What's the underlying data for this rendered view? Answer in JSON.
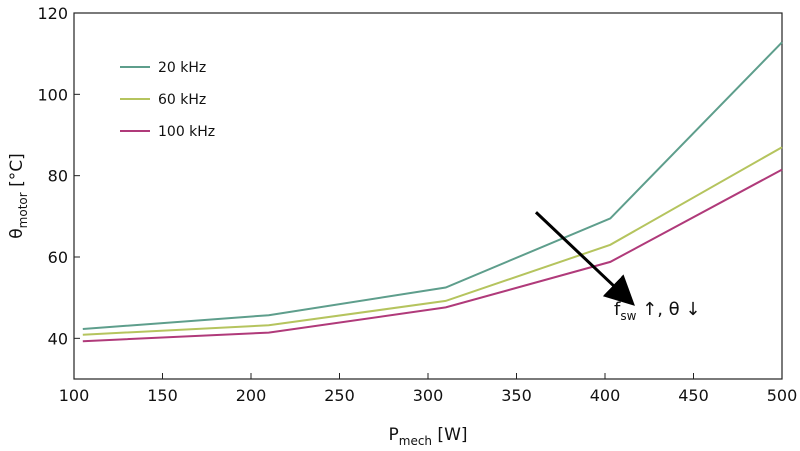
{
  "chart_data": {
    "type": "line",
    "x": [
      105,
      210,
      310,
      403,
      500
    ],
    "series": [
      {
        "name": "20 kHz",
        "color": "#5e9e8c",
        "values": [
          42.3,
          45.7,
          52.5,
          69.5,
          112.8
        ]
      },
      {
        "name": "60 kHz",
        "color": "#b5c45e",
        "values": [
          40.9,
          43.2,
          49.2,
          63.0,
          87.0
        ]
      },
      {
        "name": "100 kHz",
        "color": "#b03a7a",
        "values": [
          39.3,
          41.4,
          47.6,
          58.8,
          81.5
        ]
      }
    ],
    "xlim": [
      100,
      500
    ],
    "ylim": [
      30,
      120
    ],
    "xticks": [
      100,
      150,
      200,
      250,
      300,
      350,
      400,
      450,
      500
    ],
    "yticks": [
      40,
      60,
      80,
      100,
      120
    ],
    "xlabel": {
      "main": "P",
      "sub": "mech",
      "unit": " [W]"
    },
    "ylabel": {
      "main": "θ",
      "sub": "motor",
      "unit": " [°C]"
    },
    "legend_position": "top-left",
    "grid": false,
    "annotation": {
      "arrow_from": [
        361,
        71
      ],
      "arrow_to": [
        412,
        50
      ],
      "main": "f",
      "sub": "sw",
      "rest": " ↑, θ ↓"
    }
  }
}
